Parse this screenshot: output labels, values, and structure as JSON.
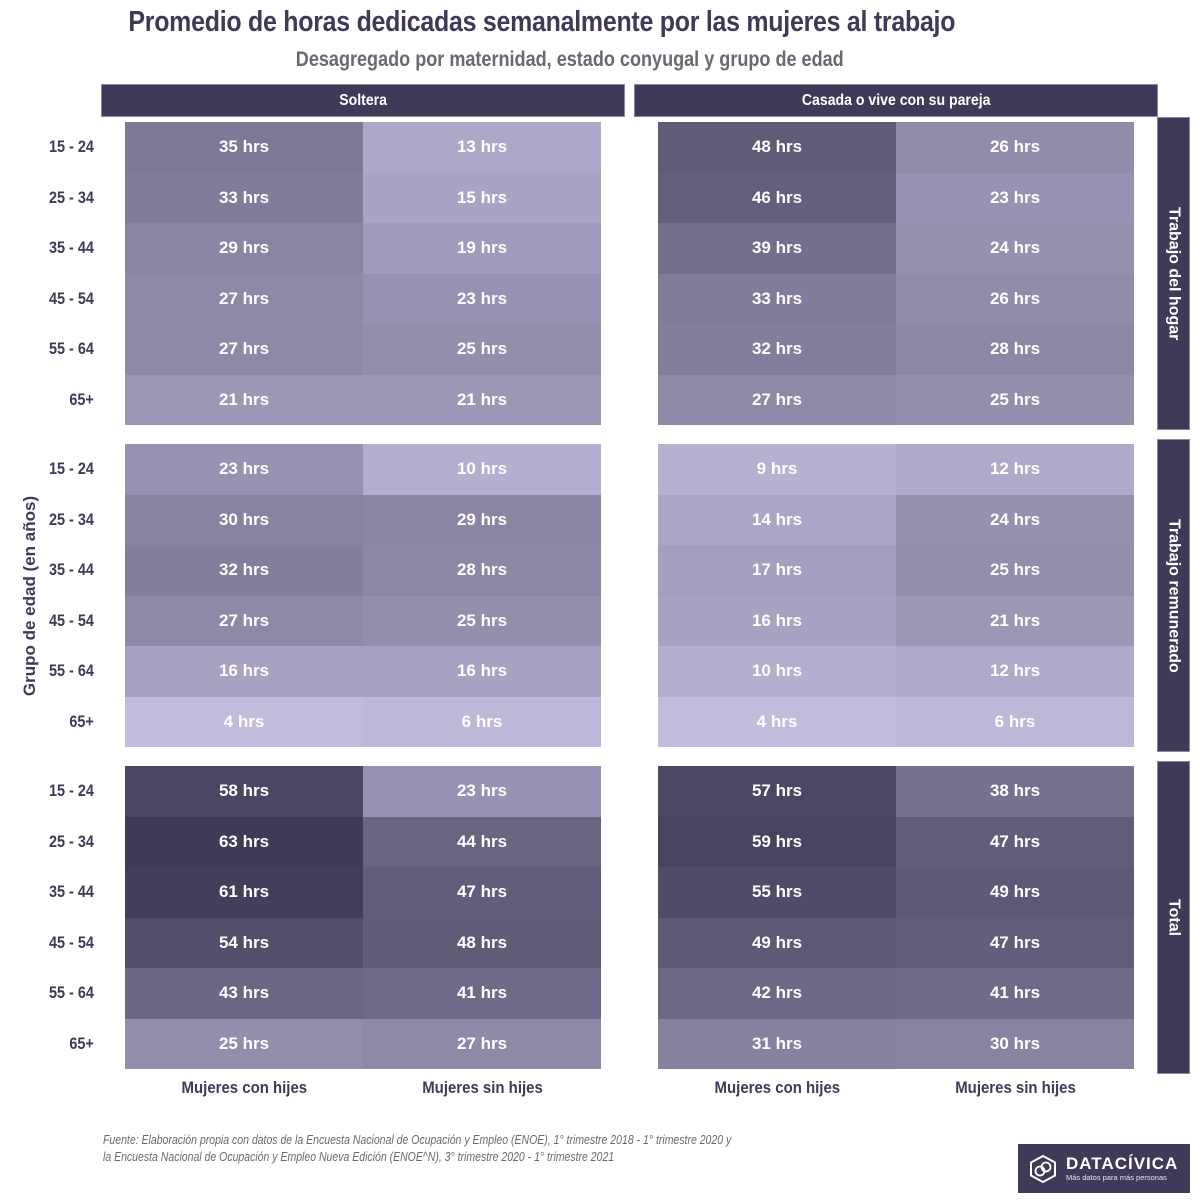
{
  "chart_data": {
    "type": "heatmap",
    "title": "Promedio de horas dedicadas semanalmente por las mujeres al trabajo",
    "subtitle": "Desagregado por maternidad, estado conyugal y grupo de edad",
    "ylabel": "Grupo de edad (en años)",
    "unit_suffix": " hrs",
    "column_groups": [
      "Soltera",
      "Casada o vive con su pareja"
    ],
    "columns": [
      "Mujeres con hijes",
      "Mujeres sin hijes"
    ],
    "row_groups": [
      "Trabajo del hogar",
      "Trabajo remunerado",
      "Total"
    ],
    "age_groups": [
      "15 - 24",
      "25 - 34",
      "35 - 44",
      "45 - 54",
      "55 - 64",
      "65+"
    ],
    "color_scale": {
      "low": "#c0bcdc",
      "high": "#3f3a55",
      "min": 4,
      "max": 63
    },
    "panels": [
      {
        "row_group": "Trabajo del hogar",
        "column_group": "Soltera",
        "series": [
          {
            "name": "Mujeres con hijes",
            "values": [
              35,
              33,
              29,
              27,
              27,
              21
            ]
          },
          {
            "name": "Mujeres sin hijes",
            "values": [
              13,
              15,
              19,
              23,
              25,
              21
            ]
          }
        ]
      },
      {
        "row_group": "Trabajo del hogar",
        "column_group": "Casada o vive con su pareja",
        "series": [
          {
            "name": "Mujeres con hijes",
            "values": [
              48,
              46,
              39,
              33,
              32,
              27
            ]
          },
          {
            "name": "Mujeres sin hijes",
            "values": [
              26,
              23,
              24,
              26,
              28,
              25
            ]
          }
        ]
      },
      {
        "row_group": "Trabajo remunerado",
        "column_group": "Soltera",
        "series": [
          {
            "name": "Mujeres con hijes",
            "values": [
              23,
              30,
              32,
              27,
              16,
              4
            ]
          },
          {
            "name": "Mujeres sin hijes",
            "values": [
              10,
              29,
              28,
              25,
              16,
              6
            ]
          }
        ]
      },
      {
        "row_group": "Trabajo remunerado",
        "column_group": "Casada o vive con su pareja",
        "series": [
          {
            "name": "Mujeres con hijes",
            "values": [
              9,
              14,
              17,
              16,
              10,
              4
            ]
          },
          {
            "name": "Mujeres sin hijes",
            "values": [
              12,
              24,
              25,
              21,
              12,
              6
            ]
          }
        ]
      },
      {
        "row_group": "Total",
        "column_group": "Soltera",
        "series": [
          {
            "name": "Mujeres con hijes",
            "values": [
              58,
              63,
              61,
              54,
              43,
              25
            ]
          },
          {
            "name": "Mujeres sin hijes",
            "values": [
              23,
              44,
              47,
              48,
              41,
              27
            ]
          }
        ]
      },
      {
        "row_group": "Total",
        "column_group": "Casada o vive con su pareja",
        "series": [
          {
            "name": "Mujeres con hijes",
            "values": [
              57,
              59,
              55,
              49,
              42,
              31
            ]
          },
          {
            "name": "Mujeres sin hijes",
            "values": [
              38,
              47,
              49,
              47,
              41,
              30
            ]
          }
        ]
      }
    ]
  },
  "header": {
    "title": "Promedio de horas dedicadas semanalmente por las mujeres al trabajo",
    "subtitle": "Desagregado por maternidad, estado conyugal y grupo de edad",
    "col_groups": [
      "Soltera",
      "Casada o vive con su pareja"
    ]
  },
  "side": {
    "row_groups": [
      "Trabajo del hogar",
      "Trabajo remunerado",
      "Total"
    ],
    "y_label": "Grupo de edad (en años)"
  },
  "footer": {
    "col_labels": [
      "Mujeres con hijes",
      "Mujeres sin hijes",
      "Mujeres con hijes",
      "Mujeres sin hijes"
    ],
    "source_line1": "Fuente: Elaboración propia con datos de la Encuesta Nacional de Ocupación y Empleo (ENOE), 1° trimestre 2018 - 1° trimestre 2020 y",
    "source_line2": "la Encuesta Nacional de Ocupación y Empleo Nueva Edición (ENOE^N), 3° trimestre 2020 - 1° trimestre 2021",
    "logo_name": "DATACÍVICA",
    "logo_tagline": "Más datos para más personas",
    "logo_icon": "datacivica-hexagon-logo"
  }
}
